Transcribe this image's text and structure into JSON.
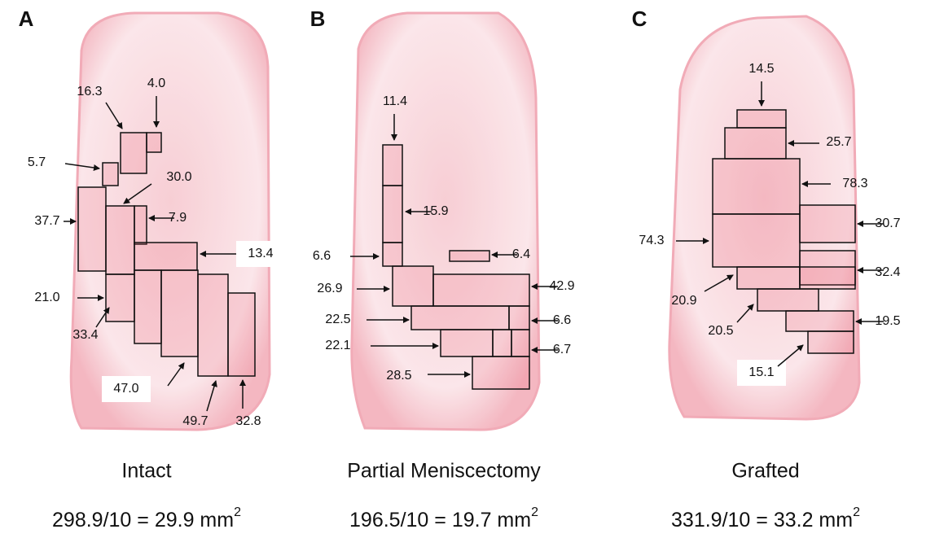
{
  "panels": [
    {
      "letter": "A",
      "labels": [
        "16.3",
        "4.0",
        "5.7",
        "30.0",
        "37.7",
        "7.9",
        "13.4",
        "21.0",
        "33.4",
        "47.0",
        "49.7",
        "32.8"
      ],
      "caption": "Intact",
      "formula": "298.9/10 = 29.9 mm",
      "formula_superscript": "2"
    },
    {
      "letter": "B",
      "labels": [
        "11.4",
        "15.9",
        "6.6",
        "6.4",
        "26.9",
        "42.9",
        "22.5",
        "6.6",
        "22.1",
        "6.7",
        "28.5"
      ],
      "caption": "Partial Meniscectomy",
      "formula": "196.5/10 = 19.7 mm",
      "formula_superscript": "2"
    },
    {
      "letter": "C",
      "labels": [
        "14.5",
        "25.7",
        "78.3",
        "30.7",
        "74.3",
        "32.4",
        "20.9",
        "20.5",
        "19.5",
        "15.1"
      ],
      "caption": "Grafted",
      "formula": "331.9/10 = 33.2 mm",
      "formula_superscript": "2"
    }
  ]
}
